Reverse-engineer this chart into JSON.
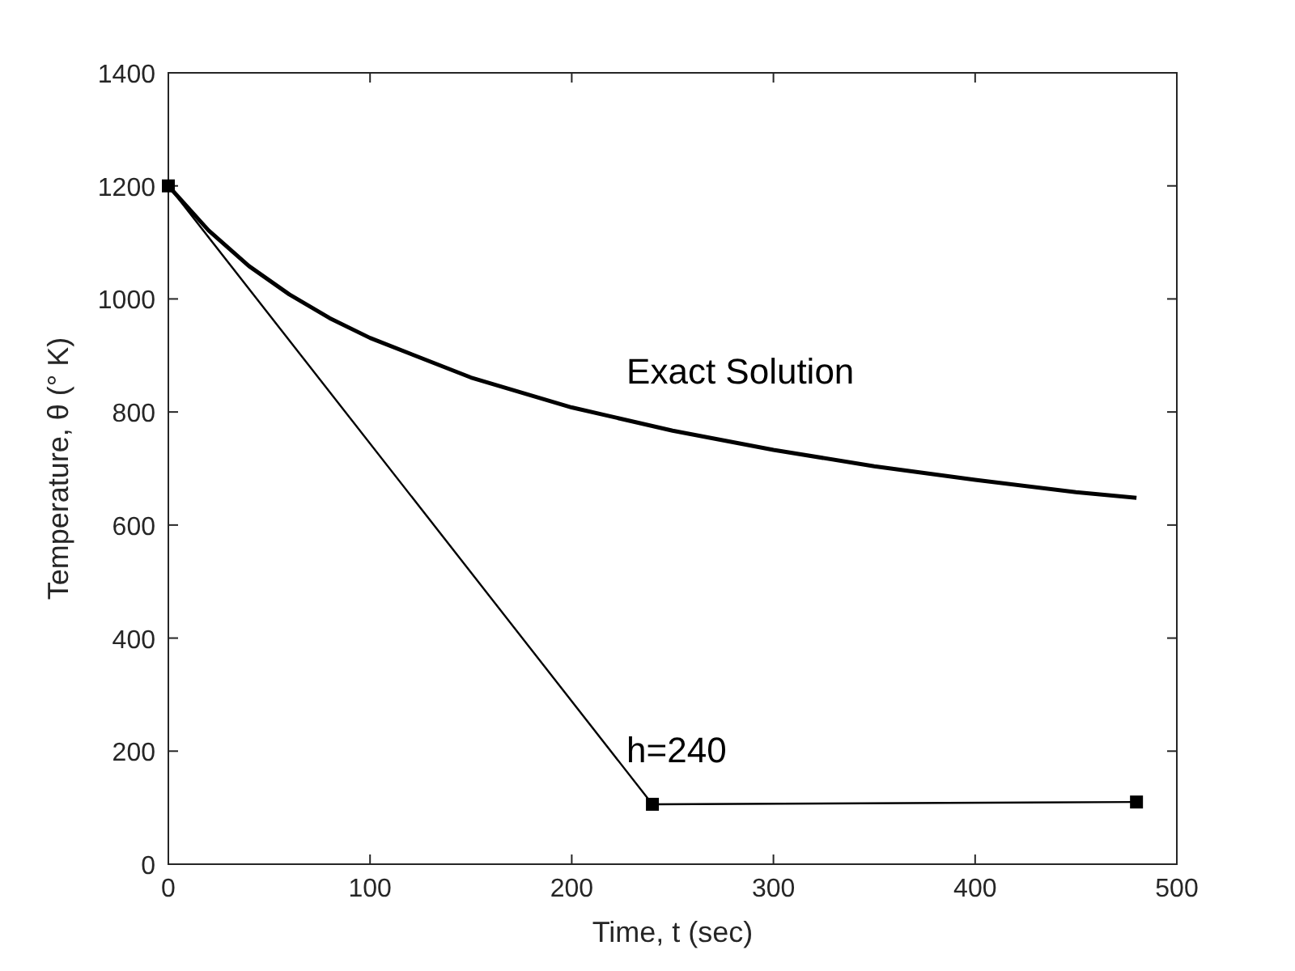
{
  "chart_data": {
    "type": "line",
    "xlabel": "Time, t (sec)",
    "ylabel": "Temperature, θ (° K)",
    "xlim": [
      0,
      500
    ],
    "xticks": [
      0,
      100,
      200,
      300,
      400,
      500
    ],
    "ylim": [
      0,
      1400
    ],
    "yticks": [
      0,
      200,
      400,
      600,
      800,
      1000,
      1200,
      1400
    ],
    "grid": false,
    "series": [
      {
        "name": "Exact Solution",
        "color": "#000000",
        "marker": "none",
        "x": [
          0,
          20,
          40,
          60,
          80,
          100,
          150,
          200,
          250,
          300,
          350,
          400,
          450,
          480
        ],
        "values": [
          1200,
          1121,
          1058,
          1008,
          966,
          931,
          861,
          808,
          767,
          733,
          704,
          680,
          658,
          648
        ]
      },
      {
        "name": "h=240",
        "color": "#000000",
        "marker": "square",
        "x": [
          0,
          240,
          480
        ],
        "values": [
          1200,
          106,
          110
        ]
      }
    ]
  }
}
